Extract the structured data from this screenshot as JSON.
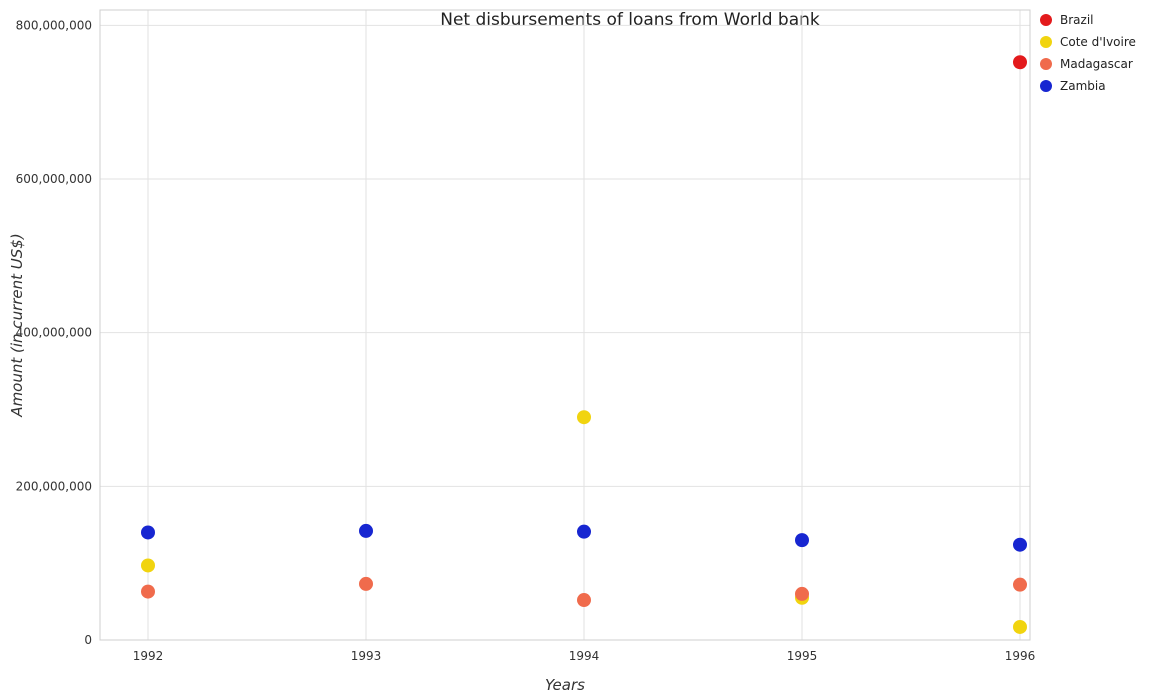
{
  "chart_data": {
    "type": "scatter",
    "title": "Net disbursements of loans from World bank",
    "xlabel": "Years",
    "ylabel": "Amount (in current US$)",
    "categories": [
      "1992",
      "1993",
      "1994",
      "1995",
      "1996"
    ],
    "ylim": [
      0,
      820000000
    ],
    "yticks": [
      0,
      200000000,
      400000000,
      600000000,
      800000000
    ],
    "ytick_labels": [
      "0",
      "200,000,000",
      "400,000,000",
      "600,000,000",
      "800,000,000"
    ],
    "grid": true,
    "legend_position": "top-right",
    "series": [
      {
        "name": "Brazil",
        "color": "#e31a1c",
        "values": [
          null,
          null,
          null,
          null,
          752000000
        ]
      },
      {
        "name": "Cote d'Ivoire",
        "color": "#f1d40f",
        "values": [
          97000000,
          null,
          290000000,
          55000000,
          17000000
        ]
      },
      {
        "name": "Madagascar",
        "color": "#f06b4c",
        "values": [
          63000000,
          73000000,
          52000000,
          60000000,
          72000000
        ]
      },
      {
        "name": "Zambia",
        "color": "#1726d1",
        "values": [
          140000000,
          142000000,
          141000000,
          130000000,
          124000000
        ]
      }
    ]
  }
}
